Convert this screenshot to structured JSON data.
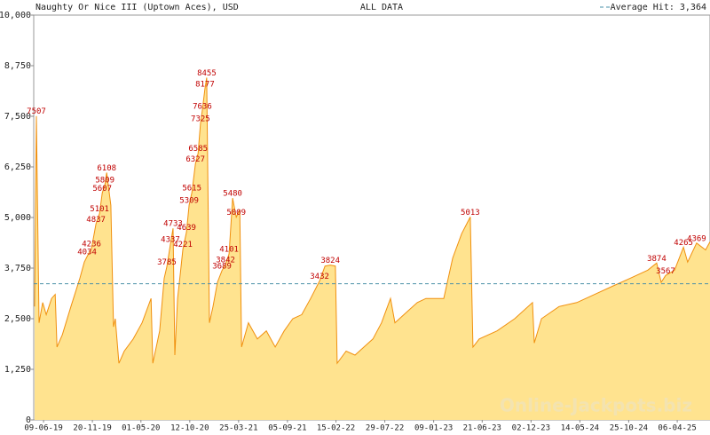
{
  "chart_data": {
    "type": "area",
    "title": "Naughty Or Nice III (Uptown Aces), USD",
    "subtitle": "ALL DATA",
    "watermark": "Online-Jackpots.biz",
    "average": {
      "label": "Average Hit: 3,364",
      "value": 3364,
      "color": "#4a90a8"
    },
    "x": [
      "10-05-19",
      "16-05-19",
      "25-05-19",
      "06-06-19",
      "18-06-19",
      "06-07-19",
      "18-07-19",
      "24-07-19",
      "11-08-19",
      "09-09-19",
      "09-10-19",
      "24-10-19",
      "02-11-19",
      "17-11-19",
      "02-12-19",
      "14-12-19",
      "23-12-19",
      "01-01-20",
      "07-01-20",
      "21-01-20",
      "30-01-20",
      "05-02-20",
      "17-02-20",
      "06-03-20",
      "05-04-20",
      "05-05-20",
      "04-06-20",
      "10-06-20",
      "03-07-20",
      "18-07-20",
      "27-07-20",
      "08-08-20",
      "17-08-20",
      "23-08-20",
      "01-09-20",
      "10-09-20",
      "19-09-20",
      "01-10-20",
      "10-10-20",
      "19-10-20",
      "31-10-20",
      "09-11-20",
      "17-11-20",
      "23-11-20",
      "02-12-20",
      "08-12-20",
      "17-12-20",
      "29-12-20",
      "13-01-21",
      "28-01-21",
      "09-02-21",
      "21-02-21",
      "05-03-21",
      "17-03-21",
      "29-03-21",
      "04-04-21",
      "27-04-21",
      "27-05-21",
      "26-06-21",
      "26-07-21",
      "25-08-21",
      "23-09-21",
      "23-10-21",
      "22-11-21",
      "22-12-21",
      "09-01-22",
      "27-01-22",
      "13-02-22",
      "19-02-22",
      "21-03-22",
      "20-04-22",
      "20-05-22",
      "19-06-22",
      "18-07-22",
      "17-08-22",
      "01-09-22",
      "16-10-22",
      "15-11-22",
      "14-12-22",
      "12-02-23",
      "14-03-23",
      "13-04-23",
      "12-05-23",
      "21-05-23",
      "11-06-23",
      "10-08-23",
      "08-10-23",
      "07-12-23",
      "13-12-23",
      "06-01-24",
      "05-03-24",
      "04-05-24",
      "03-07-24",
      "31-08-24",
      "30-10-24",
      "28-12-24",
      "27-01-25",
      "11-02-25",
      "26-02-25",
      "28-03-25",
      "27-04-25",
      "11-05-25",
      "10-06-25",
      "10-07-25",
      "25-07-25"
    ],
    "series": [
      {
        "name": "Jackpot",
        "color": "#f0900f",
        "fill": "#ffe38f",
        "values": [
          2800,
          7507,
          2400,
          2900,
          2600,
          3000,
          3100,
          1800,
          2100,
          2800,
          3500,
          3900,
          4034,
          4236,
          4837,
          5101,
          5607,
          5809,
          6108,
          5300,
          2300,
          2500,
          1400,
          1700,
          2000,
          2400,
          3000,
          1400,
          2200,
          3500,
          3785,
          4337,
          4733,
          1600,
          3000,
          3600,
          4221,
          4639,
          5309,
          5615,
          6327,
          6585,
          7325,
          7636,
          8177,
          8455,
          2400,
          2800,
          3400,
          3689,
          3842,
          4101,
          5480,
          5009,
          5200,
          1800,
          2400,
          2000,
          2200,
          1800,
          2200,
          2500,
          2600,
          3000,
          3432,
          3800,
          3824,
          3800,
          1400,
          1700,
          1600,
          1800,
          2000,
          2400,
          3000,
          2400,
          2700,
          2900,
          3000,
          3000,
          4000,
          4600,
          5013,
          1800,
          2000,
          2200,
          2500,
          2900,
          1900,
          2500,
          2800,
          2900,
          3100,
          3300,
          3500,
          3700,
          3874,
          3400,
          3567,
          3700,
          4265,
          3900,
          4369,
          4200,
          4400
        ],
        "show_label": [
          false,
          true,
          false,
          false,
          false,
          false,
          false,
          false,
          false,
          false,
          false,
          false,
          true,
          true,
          true,
          true,
          true,
          true,
          true,
          false,
          false,
          false,
          false,
          false,
          false,
          false,
          false,
          false,
          false,
          false,
          true,
          true,
          true,
          false,
          false,
          false,
          true,
          true,
          true,
          true,
          true,
          true,
          true,
          true,
          true,
          true,
          false,
          false,
          false,
          true,
          true,
          true,
          true,
          true,
          false,
          false,
          false,
          false,
          false,
          false,
          false,
          false,
          false,
          false,
          true,
          false,
          true,
          false,
          false,
          false,
          false,
          false,
          false,
          false,
          false,
          false,
          false,
          false,
          false,
          false,
          false,
          false,
          true,
          false,
          false,
          false,
          false,
          false,
          false,
          false,
          false,
          false,
          false,
          false,
          false,
          false,
          true,
          false,
          true,
          false,
          true,
          false,
          true,
          false,
          false
        ]
      }
    ],
    "xlim": [
      "07-05-19",
      "25-07-25"
    ],
    "xticks": [
      "09-06-19",
      "20-11-19",
      "01-05-20",
      "12-10-20",
      "25-03-21",
      "05-09-21",
      "15-02-22",
      "29-07-22",
      "09-01-23",
      "21-06-23",
      "02-12-23",
      "14-05-24",
      "25-10-24",
      "06-04-25"
    ],
    "ylim": [
      0,
      10000
    ],
    "yticks": [
      0,
      {
        "value": 1250,
        "label": "1,250"
      },
      {
        "value": 2500,
        "label": "2,500"
      },
      {
        "value": 3750,
        "label": "3,750"
      },
      {
        "value": 5000,
        "label": "5,000"
      },
      {
        "value": 6250,
        "label": "6,250"
      },
      {
        "value": 7500,
        "label": "7,500"
      },
      {
        "value": 8750,
        "label": "8,750"
      },
      {
        "value": 10000,
        "label": "10,000"
      }
    ],
    "grid": false
  }
}
